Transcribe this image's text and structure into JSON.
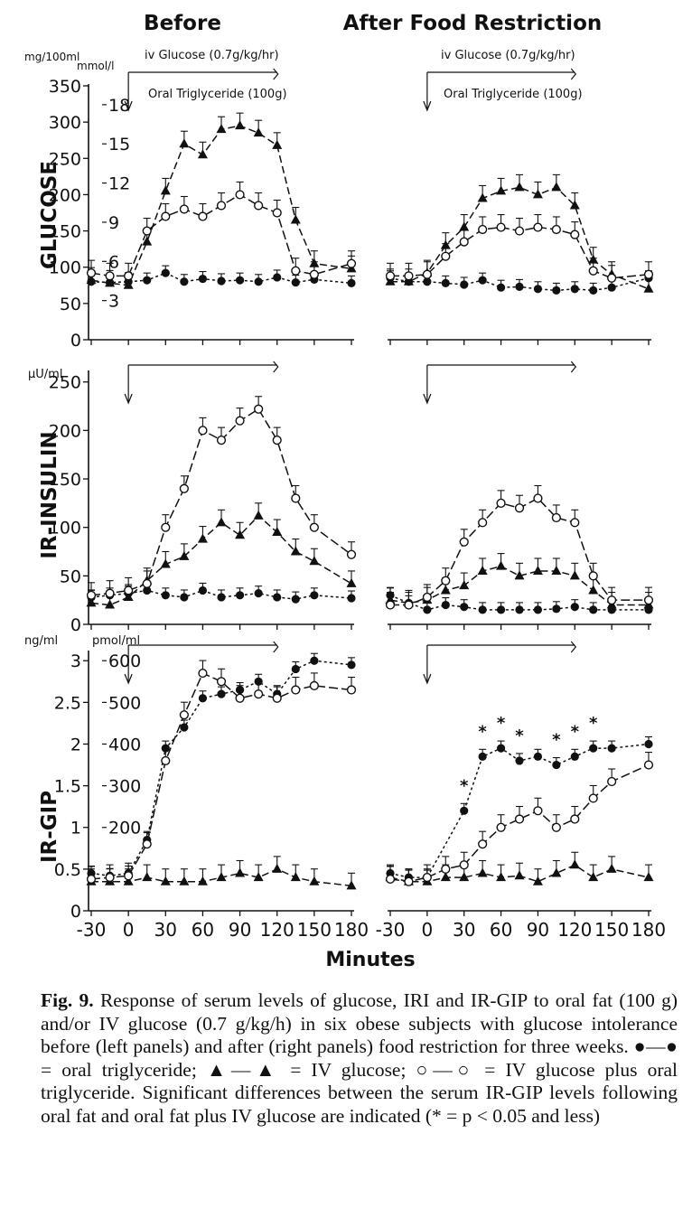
{
  "figure": {
    "col_titles": [
      "Before",
      "After Food Restriction"
    ],
    "x_axis_title": "Minutes",
    "x_ticks": [
      -30,
      0,
      30,
      60,
      90,
      120,
      150,
      180
    ],
    "annotations": {
      "iv_glucose": "iv Glucose (0.7g/kg/hr)",
      "oral_tg": "Oral Triglyceride (100g)"
    }
  },
  "caption": {
    "label": "Fig. 9.",
    "text": "Response of serum levels of glucose, IRI and IR-GIP to oral fat (100 g) and/or IV glucose (0.7 g/kg/h) in six obese subjects with glucose intolerance before (left panels) and after (right panels) food restriction for three weeks. ●—● = oral triglyceride; ▲—▲ = IV glucose; ○—○ = IV glucose plus oral triglyceride. Significant differences between the serum IR-GIP levels following oral fat and oral fat plus IV glucose are indicated (* = p < 0.05 and less)"
  },
  "chart_data": [
    {
      "type": "line",
      "panel": "glucose-before",
      "title": "Before",
      "ylabel": "GLUCOSE",
      "yunit": "mg/100ml",
      "yunit2": "mmol/l",
      "ylim": [
        0,
        350
      ],
      "yticks": [
        0,
        50,
        100,
        150,
        200,
        250,
        300,
        350
      ],
      "yticks2": [
        3,
        6,
        9,
        12,
        15,
        18
      ],
      "xlim": [
        -30,
        180
      ],
      "series": [
        {
          "name": "oral triglyceride",
          "marker": "filled-circle",
          "x": [
            -30,
            -15,
            0,
            15,
            30,
            45,
            60,
            75,
            90,
            105,
            120,
            135,
            150,
            180
          ],
          "y": [
            80,
            79,
            80,
            82,
            92,
            80,
            84,
            81,
            82,
            80,
            86,
            79,
            83,
            78
          ]
        },
        {
          "name": "IV glucose",
          "marker": "filled-triangle",
          "x": [
            -30,
            -15,
            0,
            15,
            30,
            45,
            60,
            75,
            90,
            105,
            120,
            135,
            150,
            180
          ],
          "y": [
            82,
            78,
            75,
            135,
            205,
            270,
            255,
            290,
            295,
            285,
            268,
            165,
            105,
            98
          ]
        },
        {
          "name": "IV glucose plus oral triglyceride",
          "marker": "open-circle",
          "x": [
            -30,
            -15,
            0,
            15,
            30,
            45,
            60,
            75,
            90,
            105,
            120,
            135,
            150,
            180
          ],
          "y": [
            92,
            88,
            88,
            150,
            170,
            180,
            170,
            185,
            200,
            185,
            175,
            95,
            90,
            105
          ]
        }
      ]
    },
    {
      "type": "line",
      "panel": "glucose-after",
      "title": "After Food Restriction",
      "ylabel": "GLUCOSE",
      "yunit": "mg/100ml",
      "ylim": [
        0,
        350
      ],
      "xlim": [
        -30,
        180
      ],
      "series": [
        {
          "name": "oral triglyceride",
          "marker": "filled-circle",
          "x": [
            -30,
            -15,
            0,
            15,
            30,
            45,
            60,
            75,
            90,
            105,
            120,
            135,
            150,
            180
          ],
          "y": [
            85,
            80,
            80,
            78,
            76,
            82,
            72,
            73,
            70,
            68,
            70,
            68,
            72,
            85
          ]
        },
        {
          "name": "IV glucose",
          "marker": "filled-triangle",
          "x": [
            -30,
            -15,
            0,
            15,
            30,
            45,
            60,
            75,
            90,
            105,
            120,
            135,
            150,
            180
          ],
          "y": [
            80,
            80,
            92,
            130,
            155,
            195,
            205,
            210,
            200,
            210,
            185,
            110,
            90,
            70
          ]
        },
        {
          "name": "IV glucose plus oral triglyceride",
          "marker": "open-circle",
          "x": [
            -30,
            -15,
            0,
            15,
            30,
            45,
            60,
            75,
            90,
            105,
            120,
            135,
            150,
            180
          ],
          "y": [
            88,
            88,
            90,
            115,
            135,
            152,
            155,
            150,
            155,
            152,
            145,
            95,
            85,
            90
          ]
        }
      ]
    },
    {
      "type": "line",
      "panel": "insulin-before",
      "ylabel": "IR-INSULIN",
      "yunit": "µU/ml",
      "ylim": [
        0,
        260
      ],
      "yticks": [
        0,
        50,
        100,
        150,
        200,
        250
      ],
      "xlim": [
        -30,
        180
      ],
      "series": [
        {
          "name": "oral triglyceride",
          "marker": "filled-circle",
          "x": [
            -30,
            -15,
            0,
            15,
            30,
            45,
            60,
            75,
            90,
            105,
            120,
            135,
            150,
            180
          ],
          "y": [
            28,
            30,
            32,
            35,
            30,
            28,
            35,
            28,
            30,
            32,
            28,
            26,
            30,
            27
          ]
        },
        {
          "name": "IV glucose",
          "marker": "filled-triangle",
          "x": [
            -30,
            -15,
            0,
            15,
            30,
            45,
            60,
            75,
            90,
            105,
            120,
            135,
            150,
            180
          ],
          "y": [
            22,
            20,
            28,
            45,
            62,
            70,
            88,
            105,
            92,
            112,
            95,
            75,
            65,
            42
          ]
        },
        {
          "name": "IV glucose plus oral triglyceride",
          "marker": "open-circle",
          "x": [
            -30,
            -15,
            0,
            15,
            30,
            45,
            60,
            75,
            90,
            105,
            120,
            135,
            150,
            180
          ],
          "y": [
            30,
            32,
            35,
            42,
            100,
            140,
            200,
            190,
            210,
            222,
            190,
            130,
            100,
            72
          ]
        }
      ]
    },
    {
      "type": "line",
      "panel": "insulin-after",
      "ylabel": "IR-INSULIN",
      "yunit": "µU/ml",
      "ylim": [
        0,
        260
      ],
      "xlim": [
        -30,
        180
      ],
      "series": [
        {
          "name": "oral triglyceride",
          "marker": "filled-circle",
          "x": [
            -30,
            -15,
            0,
            15,
            30,
            45,
            60,
            75,
            90,
            105,
            120,
            135,
            150,
            180
          ],
          "y": [
            30,
            22,
            15,
            20,
            18,
            15,
            15,
            15,
            15,
            16,
            18,
            15,
            15,
            15
          ]
        },
        {
          "name": "IV glucose",
          "marker": "filled-triangle",
          "x": [
            -30,
            -15,
            0,
            15,
            30,
            45,
            60,
            75,
            90,
            105,
            120,
            135,
            150,
            180
          ],
          "y": [
            25,
            22,
            25,
            35,
            40,
            55,
            60,
            50,
            55,
            55,
            50,
            35,
            20,
            20
          ]
        },
        {
          "name": "IV glucose plus oral triglyceride",
          "marker": "open-circle",
          "x": [
            -30,
            -15,
            0,
            15,
            30,
            45,
            60,
            75,
            90,
            105,
            120,
            135,
            150,
            180
          ],
          "y": [
            20,
            20,
            28,
            45,
            85,
            105,
            125,
            120,
            130,
            110,
            105,
            50,
            25,
            25
          ]
        }
      ]
    },
    {
      "type": "line",
      "panel": "gip-before",
      "ylabel": "IR-GIP",
      "yunit": "ng/ml",
      "yunit2": "pmol/ml",
      "ylim": [
        0,
        3.1
      ],
      "yticks": [
        0,
        0.5,
        1.0,
        1.5,
        2.0,
        2.5,
        3.0
      ],
      "yticks2": [
        200,
        300,
        400,
        500,
        600
      ],
      "xlim": [
        -30,
        180
      ],
      "series": [
        {
          "name": "oral triglyceride",
          "marker": "filled-circle",
          "x": [
            -30,
            -15,
            0,
            15,
            30,
            45,
            60,
            75,
            90,
            105,
            120,
            135,
            150,
            180
          ],
          "y": [
            0.45,
            0.42,
            0.45,
            0.85,
            1.95,
            2.2,
            2.55,
            2.6,
            2.65,
            2.75,
            2.6,
            2.9,
            3.0,
            2.95
          ]
        },
        {
          "name": "IV glucose",
          "marker": "filled-triangle",
          "x": [
            -30,
            -15,
            0,
            15,
            30,
            45,
            60,
            75,
            90,
            105,
            120,
            135,
            150,
            180
          ],
          "y": [
            0.35,
            0.35,
            0.35,
            0.4,
            0.35,
            0.35,
            0.35,
            0.4,
            0.45,
            0.4,
            0.5,
            0.4,
            0.35,
            0.3
          ]
        },
        {
          "name": "IV glucose plus oral triglyceride",
          "marker": "open-circle",
          "x": [
            -30,
            -15,
            0,
            15,
            30,
            45,
            60,
            75,
            90,
            105,
            120,
            135,
            150,
            180
          ],
          "y": [
            0.38,
            0.4,
            0.42,
            0.8,
            1.8,
            2.35,
            2.85,
            2.75,
            2.55,
            2.6,
            2.55,
            2.65,
            2.7,
            2.65
          ]
        }
      ]
    },
    {
      "type": "line",
      "panel": "gip-after",
      "ylabel": "IR-GIP",
      "yunit": "ng/ml",
      "ylim": [
        0,
        3.1
      ],
      "xlim": [
        -30,
        180
      ],
      "series": [
        {
          "name": "oral triglyceride",
          "marker": "filled-circle",
          "x": [
            -30,
            -15,
            0,
            30,
            45,
            60,
            75,
            90,
            105,
            120,
            135,
            150,
            180
          ],
          "y": [
            0.45,
            0.4,
            0.4,
            1.2,
            1.85,
            1.95,
            1.8,
            1.85,
            1.75,
            1.85,
            1.95,
            1.95,
            2.0
          ],
          "significance": [
            false,
            false,
            false,
            true,
            true,
            true,
            true,
            false,
            true,
            true,
            true,
            false,
            false
          ]
        },
        {
          "name": "IV glucose",
          "marker": "filled-triangle",
          "x": [
            -30,
            -15,
            0,
            15,
            30,
            45,
            60,
            75,
            90,
            105,
            120,
            135,
            150,
            180
          ],
          "y": [
            0.4,
            0.35,
            0.35,
            0.4,
            0.4,
            0.45,
            0.4,
            0.42,
            0.35,
            0.45,
            0.55,
            0.4,
            0.5,
            0.4
          ]
        },
        {
          "name": "IV glucose plus oral triglyceride",
          "marker": "open-circle",
          "x": [
            -30,
            -15,
            0,
            15,
            30,
            45,
            60,
            75,
            90,
            105,
            120,
            135,
            150,
            180
          ],
          "y": [
            0.38,
            0.35,
            0.4,
            0.5,
            0.55,
            0.8,
            1.0,
            1.1,
            1.2,
            1.0,
            1.1,
            1.35,
            1.55,
            1.75
          ]
        }
      ],
      "significance_marker": "*"
    }
  ]
}
